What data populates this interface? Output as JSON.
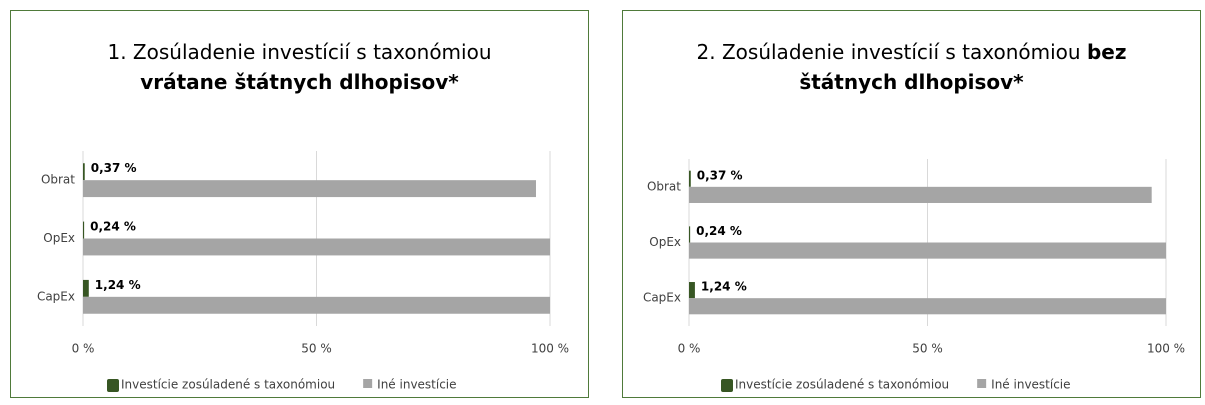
{
  "chart_data": [
    {
      "type": "bar",
      "orientation": "horizontal",
      "title": "1. Zosúladenie investícií s taxonómiou",
      "title_emphasis": "vrátane štátnych dlhopisov*",
      "categories": [
        "Obrat",
        "OpEx",
        "CapEx"
      ],
      "series": [
        {
          "name": "Investície zosúladené s taxonómiou",
          "color": "#375623",
          "values": [
            0.37,
            0.24,
            1.24
          ],
          "value_labels": [
            "0,37 %",
            "0,24 %",
            "1,24 %"
          ]
        },
        {
          "name": "Iné investície",
          "color": "#a5a5a5",
          "values": [
            97,
            100,
            100
          ]
        }
      ],
      "xlim": [
        0,
        100
      ],
      "xticks": [
        {
          "value": 0,
          "label": "0 %"
        },
        {
          "value": 50,
          "label": "50 %"
        },
        {
          "value": 100,
          "label": "100 %"
        }
      ],
      "grid": true,
      "legend": "bottom"
    },
    {
      "type": "bar",
      "orientation": "horizontal",
      "title": "2. Zosúladenie investícií s taxonómiou",
      "title_emphasis": "bez štátnych dlhopisov*",
      "categories": [
        "Obrat",
        "OpEx",
        "CapEx"
      ],
      "series": [
        {
          "name": "Investície zosúladené s taxonómiou",
          "color": "#375623",
          "values": [
            0.37,
            0.24,
            1.24
          ],
          "value_labels": [
            "0,37 %",
            "0,24 %",
            "1,24 %"
          ]
        },
        {
          "name": "Iné investície",
          "color": "#a5a5a5",
          "values": [
            97,
            100,
            100
          ]
        }
      ],
      "xlim": [
        0,
        100
      ],
      "xticks": [
        {
          "value": 0,
          "label": "0 %"
        },
        {
          "value": 50,
          "label": "50 %"
        },
        {
          "value": 100,
          "label": "100 %"
        }
      ],
      "grid": true,
      "legend": "bottom"
    }
  ]
}
